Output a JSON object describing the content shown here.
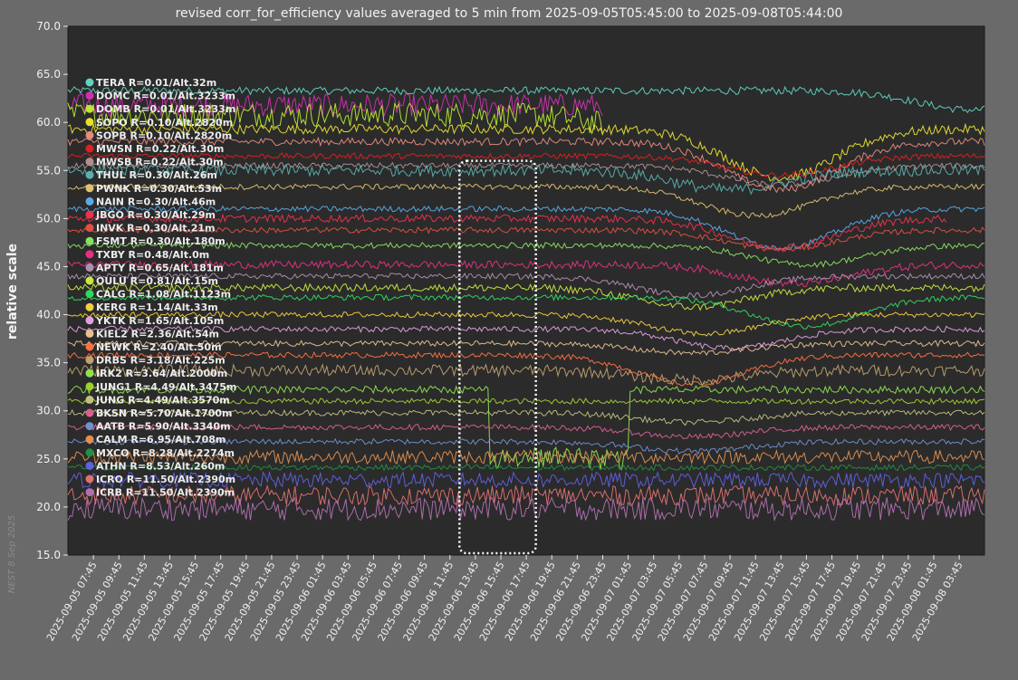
{
  "chart_data": {
    "type": "line",
    "title": "revised corr_for_efficiency values averaged to 5 min from 2025-09-05T05:45:00 to 2025-09-08T05:44:00",
    "ylabel": "relative scale",
    "xlabel": "",
    "ylim": [
      15.0,
      70.0
    ],
    "yticks": [
      "15.0",
      "20.0",
      "25.0",
      "30.0",
      "35.0",
      "40.0",
      "45.0",
      "50.0",
      "55.0",
      "60.0",
      "65.0",
      "70.0"
    ],
    "xticks": [
      "2025-09-05 07:45",
      "2025-09-05 09:45",
      "2025-09-05 11:45",
      "2025-09-05 13:45",
      "2025-09-05 15:45",
      "2025-09-05 17:45",
      "2025-09-05 19:45",
      "2025-09-05 21:45",
      "2025-09-05 23:45",
      "2025-09-06 01:45",
      "2025-09-06 03:45",
      "2025-09-06 05:45",
      "2025-09-06 07:45",
      "2025-09-06 09:45",
      "2025-09-06 11:45",
      "2025-09-06 13:45",
      "2025-09-06 15:45",
      "2025-09-06 17:45",
      "2025-09-06 19:45",
      "2025-09-06 21:45",
      "2025-09-06 23:45",
      "2025-09-07 01:45",
      "2025-09-07 03:45",
      "2025-09-07 05:45",
      "2025-09-07 07:45",
      "2025-09-07 09:45",
      "2025-09-07 11:45",
      "2025-09-07 13:45",
      "2025-09-07 15:45",
      "2025-09-07 17:45",
      "2025-09-07 19:45",
      "2025-09-07 21:45",
      "2025-09-07 23:45",
      "2025-09-08 01:45",
      "2025-09-08 03:45"
    ],
    "x_start": "2025-09-05 05:45",
    "x_end": "2025-09-08 05:44",
    "grid": false,
    "legend_position": "top-left",
    "background": "#2b2b2b",
    "highlight_box": {
      "x_start": "2025-09-06 12:30",
      "x_end": "2025-09-06 18:30",
      "y_range": [
        15.0,
        56.0
      ]
    },
    "series": [
      {
        "name": "TERA R=0.01/Alt.32m",
        "color": "#5fd4c0",
        "base": 63.3,
        "noise": 0.4,
        "dip": [
          [
            71,
            -2
          ]
        ],
        "gap": null,
        "offline_after": null
      },
      {
        "name": "DOMC R=0.01/Alt.3233m",
        "color": "#d030b0",
        "base": 61.8,
        "noise": 1.2,
        "dip": [],
        "gap": null,
        "offline_after": 42
      },
      {
        "name": "DOMB R=0.01/Alt.3233m",
        "color": "#b8e830",
        "base": 60.8,
        "noise": 1.3,
        "dip": [
          [
            47,
            -2
          ]
        ],
        "gap": null,
        "offline_after": 42
      },
      {
        "name": "SOPO R=0.10/Alt.2820m",
        "color": "#e8e030",
        "base": 59.3,
        "noise": 0.5,
        "dip": [
          [
            56,
            -5
          ]
        ],
        "gap": null,
        "offline_after": null
      },
      {
        "name": "SOPB R=0.10/Alt.2820m",
        "color": "#e88a80",
        "base": 58.0,
        "noise": 0.4,
        "dip": [
          [
            56,
            -5
          ]
        ],
        "gap": null,
        "offline_after": null
      },
      {
        "name": "MWSN R=0.22/Alt.30m",
        "color": "#e02020",
        "base": 56.5,
        "noise": 0.3,
        "dip": [
          [
            56,
            -2
          ]
        ],
        "gap": null,
        "offline_after": null
      },
      {
        "name": "MWSB R=0.22/Alt.30m",
        "color": "#b09090",
        "base": 55.5,
        "noise": 0.3,
        "dip": [
          [
            56,
            -2
          ]
        ],
        "gap": null,
        "offline_after": null
      },
      {
        "name": "THUL R=0.30/Alt.26m",
        "color": "#5ab0b0",
        "base": 55.0,
        "noise": 0.6,
        "dip": [
          [
            52,
            -2
          ]
        ],
        "gap": null,
        "offline_after": null
      },
      {
        "name": "PWNK R=0.30/Alt.53m",
        "color": "#e0c070",
        "base": 53.3,
        "noise": 0.3,
        "dip": [
          [
            54,
            -3
          ]
        ],
        "gap": null,
        "offline_after": null
      },
      {
        "name": "NAIN R=0.30/Alt.46m",
        "color": "#5aaae8",
        "base": 51.0,
        "noise": 0.3,
        "dip": [
          [
            56,
            -4
          ]
        ],
        "gap": null,
        "offline_after": null
      },
      {
        "name": "JBGO R=0.30/Alt.29m",
        "color": "#ee3050",
        "base": 50.0,
        "noise": 0.4,
        "dip": [
          [
            56,
            -3
          ]
        ],
        "gap": null,
        "offline_after": 69
      },
      {
        "name": "INVK R=0.30/Alt.21m",
        "color": "#e05040",
        "base": 48.8,
        "noise": 0.3,
        "dip": [
          [
            56,
            -2
          ]
        ],
        "gap": null,
        "offline_after": null
      },
      {
        "name": "FSMT R=0.30/Alt.180m",
        "color": "#88e060",
        "base": 47.2,
        "noise": 0.3,
        "dip": [
          [
            58,
            -2
          ]
        ],
        "gap": null,
        "offline_after": null
      },
      {
        "name": "TXBY R=0.48/Alt.0m",
        "color": "#e83080",
        "base": 45.2,
        "noise": 0.4,
        "dip": [
          [
            57,
            -2
          ]
        ],
        "gap": null,
        "offline_after": null
      },
      {
        "name": "APTY R=0.65/Alt.181m",
        "color": "#b090b0",
        "base": 44.0,
        "noise": 0.3,
        "dip": [
          [
            49,
            -2
          ]
        ],
        "gap": null,
        "offline_after": null
      },
      {
        "name": "OULU R=0.81/Alt.15m",
        "color": "#c8e840",
        "base": 42.8,
        "noise": 0.4,
        "dip": [
          [
            49,
            -2
          ]
        ],
        "gap": null,
        "offline_after": null
      },
      {
        "name": "CALG R=1.08/Alt.1123m",
        "color": "#30d860",
        "base": 41.8,
        "noise": 0.3,
        "dip": [
          [
            58,
            -3
          ]
        ],
        "gap": null,
        "offline_after": null
      },
      {
        "name": "KERG R=1.14/Alt.33m",
        "color": "#f0d040",
        "base": 40.0,
        "noise": 0.3,
        "dip": [
          [
            50,
            -2
          ]
        ],
        "gap": null,
        "offline_after": null
      },
      {
        "name": "YKTK R=1.65/Alt.105m",
        "color": "#e0a0e0",
        "base": 38.5,
        "noise": 0.3,
        "dip": [
          [
            52,
            -2
          ]
        ],
        "gap": null,
        "offline_after": null
      },
      {
        "name": "KIEL2 R=2.36/Alt.54m",
        "color": "#e8c090",
        "base": 37.0,
        "noise": 0.3,
        "dip": [
          [
            49,
            -1
          ]
        ],
        "gap": null,
        "offline_after": null
      },
      {
        "name": "NEWK R=2.40/Alt.50m",
        "color": "#ff7040",
        "base": 35.8,
        "noise": 0.3,
        "dip": [
          [
            49,
            -3
          ]
        ],
        "gap": null,
        "offline_after": null
      },
      {
        "name": "DRBS R=3.18/Alt.225m",
        "color": "#c0a070",
        "base": 34.2,
        "noise": 0.6,
        "dip": [
          [
            49,
            -1
          ]
        ],
        "gap": null,
        "offline_after": null
      },
      {
        "name": "IRK2 R=3.64/Alt.2000m",
        "color": "#90e050",
        "base": 32.2,
        "noise": 0.4,
        "dip": [],
        "gap": [
          [
            33,
            44
          ]
        ],
        "offline_after": null
      },
      {
        "name": "JUNG1 R=4.49/Alt.3475m",
        "color": "#a0d030",
        "base": 31.0,
        "noise": 0.3,
        "dip": [],
        "gap": null,
        "offline_after": null
      },
      {
        "name": "JUNG R=4.49/Alt.3570m",
        "color": "#c0c080",
        "base": 29.8,
        "noise": 0.3,
        "dip": [
          [
            49,
            -1
          ]
        ],
        "gap": null,
        "offline_after": null
      },
      {
        "name": "BKSN R=5.70/Alt.1700m",
        "color": "#d86090",
        "base": 28.3,
        "noise": 0.3,
        "dip": [
          [
            49,
            -1
          ]
        ],
        "gap": null,
        "offline_after": null
      },
      {
        "name": "AATB R=5.90/Alt.3340m",
        "color": "#7090d0",
        "base": 26.8,
        "noise": 0.3,
        "dip": [
          [
            49,
            -1
          ]
        ],
        "gap": null,
        "offline_after": null
      },
      {
        "name": "CALM R=6.95/Alt.708m",
        "color": "#e09050",
        "base": 25.2,
        "noise": 0.7,
        "dip": [],
        "gap": null,
        "offline_after": null
      },
      {
        "name": "MXCO R=8.28/Alt.2274m",
        "color": "#209040",
        "base": 24.1,
        "noise": 0.3,
        "dip": [],
        "gap": null,
        "offline_after": null
      },
      {
        "name": "ATHN R=8.53/Alt.260m",
        "color": "#6060e0",
        "base": 22.8,
        "noise": 0.8,
        "dip": [],
        "gap": null,
        "offline_after": null
      },
      {
        "name": "ICRO R=11.50/Alt.2390m",
        "color": "#e07070",
        "base": 21.2,
        "noise": 1.0,
        "dip": [],
        "gap": null,
        "offline_after": null
      },
      {
        "name": "ICRB R=11.50/Alt.2390m",
        "color": "#b070b0",
        "base": 19.8,
        "noise": 1.2,
        "dip": [],
        "gap": null,
        "offline_after": null
      }
    ]
  },
  "watermark": "NEST  8 Sep 2025"
}
